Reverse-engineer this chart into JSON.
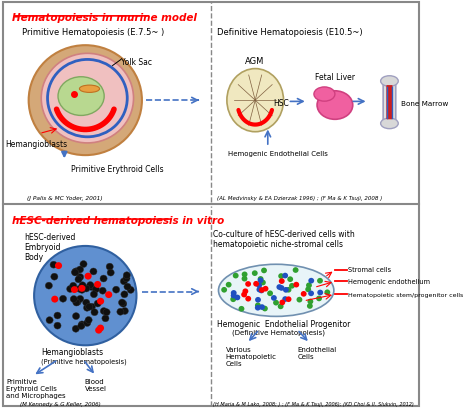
{
  "fig_width": 4.74,
  "fig_height": 4.1,
  "dpi": 100,
  "bg_color": "#ffffff",
  "border_color": "#888888",
  "section1_title": "Hematopoiesis in murine model",
  "section2_title": "hESC-derived hematopoiesis in vitro",
  "top_left_header": "Primitive Hematopoiesis (E.7.5~ )",
  "top_right_header": "Definitive Hematopoiesis (E10.5~)",
  "ref1": "(J Palis & MC Yoder, 2001)",
  "ref2": "(AL Medvinsky & EA Dzierzak 1996) ; (F Ma & K Tsuji, 2008 )",
  "ref3": "(M Kennedy & G Keller, 2006)",
  "ref4": "(H Maria & M Lako, 2008; ) ; (F Ma & K Tsuji, 2006); (KD Choi & II. Slukvin, 2012)",
  "blue_color": "#4472c4",
  "red_color": "#cc0000"
}
